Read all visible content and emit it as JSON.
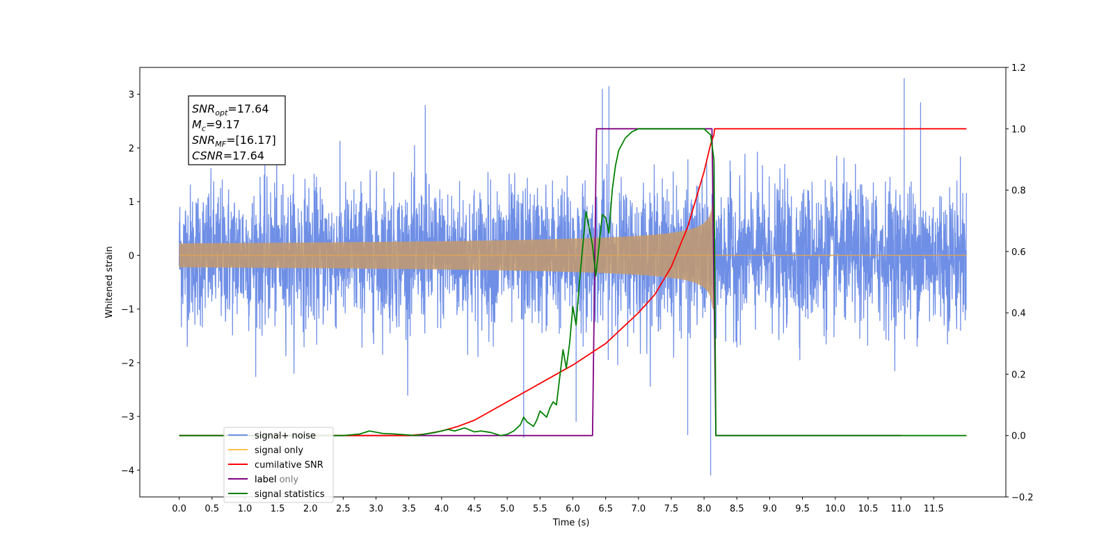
{
  "chart_data": {
    "type": "line",
    "xlabel": "Time (s)",
    "ylabel": "Whitened strain",
    "xlim": [
      -0.6,
      12.6
    ],
    "ylim": [
      -4.5,
      3.5
    ],
    "y2lim": [
      -0.2,
      1.2
    ],
    "x_ticks": [
      "0.0",
      "0.5",
      "1.0",
      "1.5",
      "2.0",
      "2.5",
      "3.0",
      "3.5",
      "4.0",
      "4.5",
      "5.0",
      "5.5",
      "6.0",
      "6.5",
      "7.0",
      "7.5",
      "8.0",
      "8.5",
      "9.0",
      "9.5",
      "10.0",
      "10.5",
      "11.0",
      "11.5"
    ],
    "x_tick_values": [
      0.0,
      0.5,
      1.0,
      1.5,
      2.0,
      2.5,
      3.0,
      3.5,
      4.0,
      4.5,
      5.0,
      5.5,
      6.0,
      6.5,
      7.0,
      7.5,
      8.0,
      8.5,
      9.0,
      9.5,
      10.0,
      10.5,
      11.0,
      11.5
    ],
    "y_ticks": [
      "3",
      "2",
      "1",
      "0",
      "−1",
      "−2",
      "−3",
      "−4"
    ],
    "y_tick_values": [
      3,
      2,
      1,
      0,
      -1,
      -2,
      -3,
      -4
    ],
    "y2_ticks": [
      "1.2",
      "1.0",
      "0.8",
      "0.6",
      "0.4",
      "0.2",
      "0.0",
      "−0.2"
    ],
    "y2_tick_values": [
      1.2,
      1.0,
      0.8,
      0.6,
      0.4,
      0.2,
      0.0,
      -0.2
    ],
    "grid": false,
    "legend_placement": "lower-left",
    "series": [
      {
        "name": "signal+ noise",
        "axis": "left",
        "color": "#6f8fe6",
        "description": "white noise, std about 0.65, range approx -4.1 to 3.3, from 0.0 to 12.0 s",
        "x_range": [
          0.0,
          12.0
        ],
        "noise_std": 0.65
      },
      {
        "name": "signal only",
        "axis": "left",
        "color": "#d9a35a",
        "description": "chirp growing in amplitude from 0 to about 1.0 at 8.15 s, then 0",
        "x_range": [
          0.0,
          12.0
        ],
        "peak_time": 8.15,
        "peak_amplitude": 1.0
      },
      {
        "name": "cumilative SNR",
        "axis": "right",
        "color": "#ff0000",
        "x": [
          0.0,
          3.0,
          3.5,
          3.75,
          4.0,
          4.25,
          4.5,
          5.0,
          5.5,
          6.0,
          6.5,
          7.0,
          7.25,
          7.5,
          7.75,
          8.0,
          8.1,
          8.15,
          8.16,
          12.0
        ],
        "y": [
          0.0,
          0.0,
          0.0,
          0.005,
          0.015,
          0.03,
          0.05,
          0.11,
          0.17,
          0.23,
          0.3,
          0.4,
          0.46,
          0.55,
          0.68,
          0.86,
          0.95,
          0.98,
          1.0,
          1.0
        ]
      },
      {
        "name": "label",
        "axis": "right",
        "color": "#800080",
        "x": [
          0.0,
          6.3,
          6.36,
          8.12,
          8.18,
          11.0
        ],
        "y": [
          0.0,
          0.0,
          1.0,
          1.0,
          0.0,
          0.0
        ]
      },
      {
        "name": "signal statistics",
        "axis": "right",
        "color": "#008000",
        "x": [
          0.0,
          2.5,
          2.75,
          2.9,
          3.1,
          3.3,
          3.6,
          3.9,
          4.1,
          4.2,
          4.35,
          4.5,
          4.6,
          4.75,
          4.9,
          5.0,
          5.1,
          5.2,
          5.25,
          5.3,
          5.4,
          5.45,
          5.5,
          5.55,
          5.6,
          5.65,
          5.7,
          5.75,
          5.85,
          5.9,
          5.95,
          6.0,
          6.05,
          6.1,
          6.2,
          6.3,
          6.35,
          6.45,
          6.5,
          6.55,
          6.6,
          6.65,
          6.7,
          6.8,
          6.9,
          7.0,
          7.2,
          8.0,
          8.1,
          8.15,
          8.18,
          8.25,
          12.0
        ],
        "y": [
          0.0,
          0.0,
          0.005,
          0.015,
          0.007,
          0.005,
          0.0,
          0.01,
          0.02,
          0.015,
          0.025,
          0.012,
          0.015,
          0.01,
          0.0,
          0.004,
          0.015,
          0.035,
          0.06,
          0.045,
          0.03,
          0.05,
          0.08,
          0.07,
          0.06,
          0.09,
          0.11,
          0.1,
          0.28,
          0.22,
          0.3,
          0.42,
          0.36,
          0.5,
          0.73,
          0.62,
          0.52,
          0.72,
          0.71,
          0.66,
          0.8,
          0.88,
          0.93,
          0.97,
          0.99,
          1.0,
          1.0,
          1.0,
          0.98,
          0.9,
          0.0,
          0.0,
          0.0
        ]
      }
    ],
    "annotation": {
      "lines": [
        {
          "main": "SNR",
          "sub": "opt",
          "rest": "=17.64"
        },
        {
          "main": "M",
          "sub": "c",
          "rest": "=9.17"
        },
        {
          "main": "SNR",
          "sub": "MF",
          "rest": "=[16.17]"
        },
        {
          "main": "CSNR",
          "sub": "",
          "rest": "=17.64"
        }
      ]
    },
    "legend": [
      {
        "label": "signal+ noise",
        "color": "#6f8fe6"
      },
      {
        "label": "signal only",
        "color": "#ffc04d"
      },
      {
        "label": "cumilative SNR",
        "color": "#ff0000"
      },
      {
        "label": "label",
        "color": "#800080"
      },
      {
        "label": "signal statistics",
        "color": "#008000"
      }
    ],
    "legend_ghost_text": "label only"
  }
}
